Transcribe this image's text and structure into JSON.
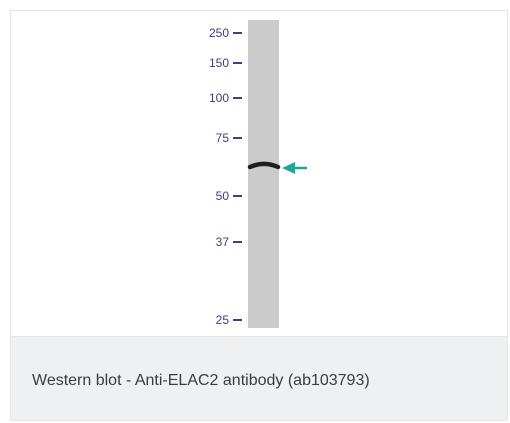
{
  "figure": {
    "markers": [
      "250",
      "150",
      "100",
      "75",
      "50",
      "37",
      "25"
    ],
    "caption": "Western blot - Anti-ELAC2 antibody (ab103793)",
    "colors": {
      "lane": "#cbcbcb",
      "band": "#1f1f1f",
      "marker_text": "#3a3e8c",
      "marker_tick": "#3a3e8c",
      "arrow": "#1fa89a",
      "caption_background": "#eef0f1",
      "caption_text": "#3c3c3c"
    }
  }
}
